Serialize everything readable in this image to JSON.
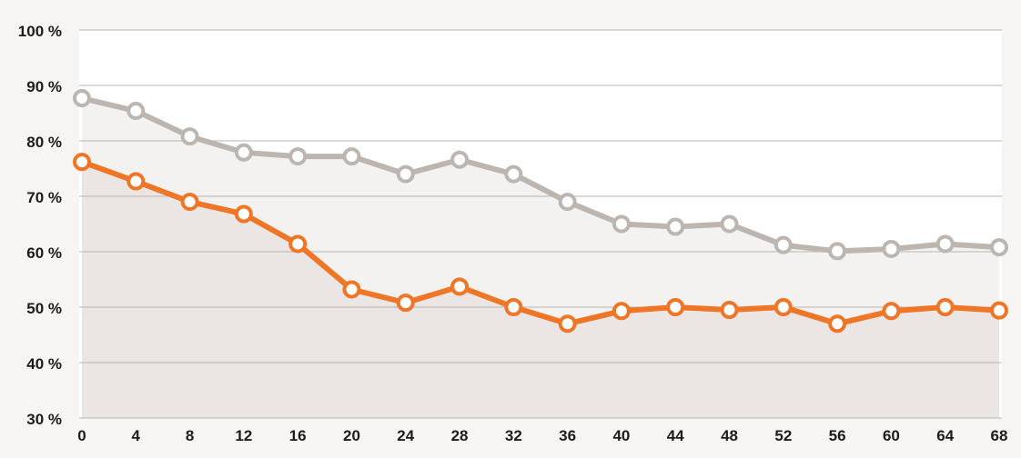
{
  "chart_data": {
    "type": "line",
    "x": [
      0,
      4,
      8,
      12,
      16,
      20,
      24,
      28,
      32,
      36,
      40,
      44,
      48,
      52,
      56,
      60,
      64,
      68
    ],
    "x_tick_labels": [
      "0",
      "4",
      "8",
      "12",
      "16",
      "20",
      "24",
      "28",
      "32",
      "36",
      "40",
      "44",
      "48",
      "52",
      "56",
      "60",
      "64",
      "68"
    ],
    "y_ticks": [
      30,
      40,
      50,
      60,
      70,
      80,
      90,
      100
    ],
    "y_tick_labels": [
      "30 %",
      "40 %",
      "50 %",
      "60 %",
      "70 %",
      "80 %",
      "90 %",
      "100 %"
    ],
    "ylim": [
      30,
      100
    ],
    "xlim": [
      0,
      68
    ],
    "grid": "horizontal",
    "legend": "none",
    "series": [
      {
        "key": "upper",
        "color": "#bdb6b0",
        "area_fill": "#f3f2f1",
        "values": [
          87.7,
          85.4,
          80.8,
          77.9,
          77.2,
          77.2,
          74.0,
          76.6,
          74.0,
          69.0,
          65.0,
          64.5,
          65.0,
          61.2,
          60.1,
          60.5,
          61.4,
          60.8
        ]
      },
      {
        "key": "lower",
        "color": "#ef7627",
        "area_fill": "#ebe6e3",
        "values": [
          76.2,
          72.7,
          69.0,
          66.8,
          61.4,
          53.2,
          50.8,
          53.7,
          50.0,
          47.0,
          49.3,
          50.0,
          49.5,
          50.0,
          47.0,
          49.3,
          50.0,
          49.4
        ]
      }
    ],
    "colors": {
      "background": "#f6f5f3",
      "plot_background": "#ffffff",
      "gridline": "#b9b4b0",
      "tick_text": "#1c1c1c"
    }
  }
}
